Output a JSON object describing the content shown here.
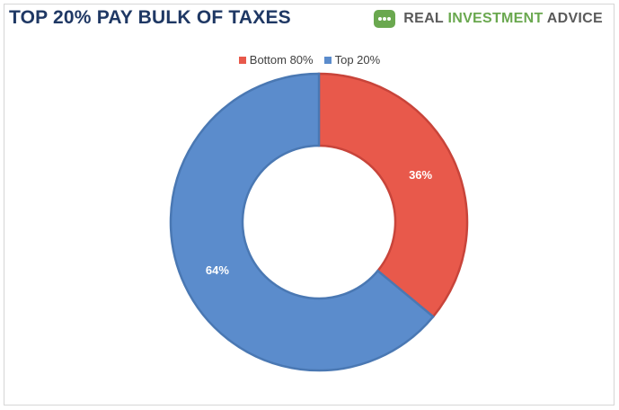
{
  "header": {
    "title": "TOP 20% PAY BULK OF TAXES",
    "brand": {
      "prefix": "REAL ",
      "accent": "INVESTMENT",
      "suffix": " ADVICE",
      "logo_icon": "rounded-square-logo-icon",
      "logo_color": "#6aa84f"
    }
  },
  "chart_data": {
    "type": "pie",
    "donut": true,
    "categories": [
      "Bottom 80%",
      "Top 20%"
    ],
    "values": [
      36,
      64
    ],
    "labels": [
      "36%",
      "64%"
    ],
    "colors": [
      "#e8594b",
      "#5b8ccc"
    ],
    "legend_position": "top"
  }
}
